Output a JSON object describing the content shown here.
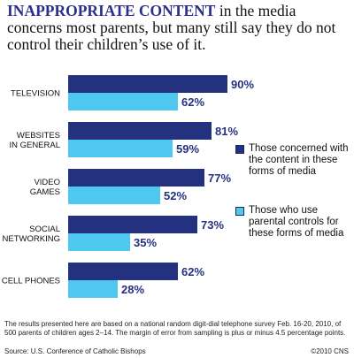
{
  "headline": {
    "lead": "INAPPROPRIATE CONTENT",
    "rest": " in the media concerns most parents, but many still say they do not control their children’s use of it."
  },
  "chart_data": {
    "type": "bar",
    "orientation": "horizontal",
    "categories": [
      [
        "TELEVISION"
      ],
      [
        "WEBSITES",
        "IN GENERAL"
      ],
      [
        "VIDEO",
        "GAMES"
      ],
      [
        "SOCIAL",
        "NETWORKING"
      ],
      [
        "CELL PHONES"
      ]
    ],
    "series": [
      {
        "name": "Those concerned with the content in these forms of media",
        "values": [
          90,
          81,
          77,
          73,
          62
        ],
        "color": "#24317f",
        "label_color": "#24317f"
      },
      {
        "name": "Those who use parental controls for these forms of media",
        "values": [
          62,
          59,
          52,
          35,
          28
        ],
        "color": "#4ec8ee",
        "label_color": "#24317f"
      }
    ],
    "value_suffix": "%",
    "xlim": [
      0,
      100
    ],
    "legend_position": "right"
  },
  "legend": {
    "items": [
      {
        "label": "Those concerned with the content in these forms of media",
        "color": "#24317f"
      },
      {
        "label": "Those who use parental controls for these forms of media",
        "color": "#4ec8ee"
      }
    ]
  },
  "notes": "The results presented here are based on a national random digit-dial telephone survey Feb. 16-20, 2010, of 500 parents of children ages 2–14. The margin of error from sampling is plus or minus 4.5 percentage points.",
  "source": "Source: U.S. Conference of Catholic Bishops",
  "copyright": "©2010 CNS"
}
